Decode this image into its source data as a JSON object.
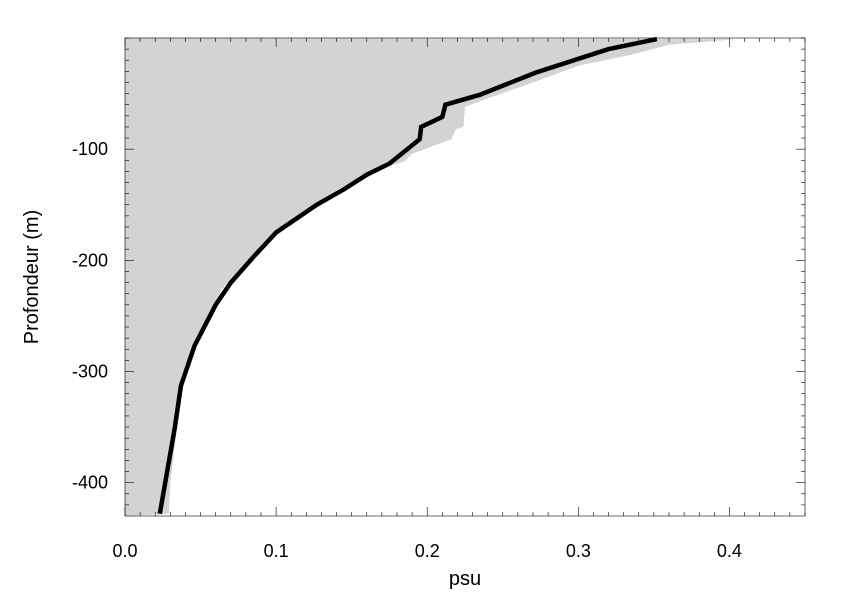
{
  "chart_data": {
    "type": "area",
    "title": "",
    "xlabel": "psu",
    "ylabel": "Profondeur (m)",
    "xlim": [
      0.0,
      0.45
    ],
    "ylim": [
      -430,
      0
    ],
    "x_ticks": [
      {
        "value": 0.0,
        "label": "0.0"
      },
      {
        "value": 0.1,
        "label": "0.1"
      },
      {
        "value": 0.2,
        "label": "0.2"
      },
      {
        "value": 0.3,
        "label": "0.3"
      },
      {
        "value": 0.4,
        "label": "0.4"
      }
    ],
    "y_ticks": [
      {
        "value": -100,
        "label": "-100"
      },
      {
        "value": -200,
        "label": "-200"
      },
      {
        "value": -300,
        "label": "-300"
      },
      {
        "value": -400,
        "label": "-400"
      }
    ],
    "grid": false,
    "colors": {
      "line": "#000000",
      "fill": "#d3d3d3",
      "axis": "#000000",
      "background": "#ffffff"
    },
    "series": [
      {
        "kind": "line",
        "points": [
          [
            0.352,
            -1
          ],
          [
            0.32,
            -10
          ],
          [
            0.272,
            -31
          ],
          [
            0.235,
            -51
          ],
          [
            0.212,
            -60
          ],
          [
            0.21,
            -71
          ],
          [
            0.196,
            -80
          ],
          [
            0.195,
            -91
          ],
          [
            0.175,
            -113
          ],
          [
            0.16,
            -123
          ],
          [
            0.145,
            -136
          ],
          [
            0.127,
            -150
          ],
          [
            0.1,
            -175
          ],
          [
            0.085,
            -197
          ],
          [
            0.07,
            -220
          ],
          [
            0.06,
            -240
          ],
          [
            0.046,
            -277
          ],
          [
            0.037,
            -313
          ],
          [
            0.033,
            -350
          ],
          [
            0.023,
            -428
          ]
        ]
      },
      {
        "kind": "area",
        "boundary": [
          [
            0.405,
            -1
          ],
          [
            0.36,
            -6
          ],
          [
            0.335,
            -15
          ],
          [
            0.3,
            -25
          ],
          [
            0.27,
            -40
          ],
          [
            0.245,
            -52
          ],
          [
            0.225,
            -62
          ],
          [
            0.224,
            -80
          ],
          [
            0.219,
            -82
          ],
          [
            0.216,
            -91
          ],
          [
            0.19,
            -104
          ],
          [
            0.185,
            -111
          ],
          [
            0.16,
            -121
          ],
          [
            0.13,
            -145
          ],
          [
            0.1,
            -175
          ],
          [
            0.087,
            -193
          ],
          [
            0.064,
            -226
          ],
          [
            0.058,
            -245
          ],
          [
            0.048,
            -272
          ],
          [
            0.038,
            -310
          ],
          [
            0.034,
            -355
          ],
          [
            0.03,
            -400
          ],
          [
            0.029,
            -428
          ]
        ]
      }
    ]
  }
}
